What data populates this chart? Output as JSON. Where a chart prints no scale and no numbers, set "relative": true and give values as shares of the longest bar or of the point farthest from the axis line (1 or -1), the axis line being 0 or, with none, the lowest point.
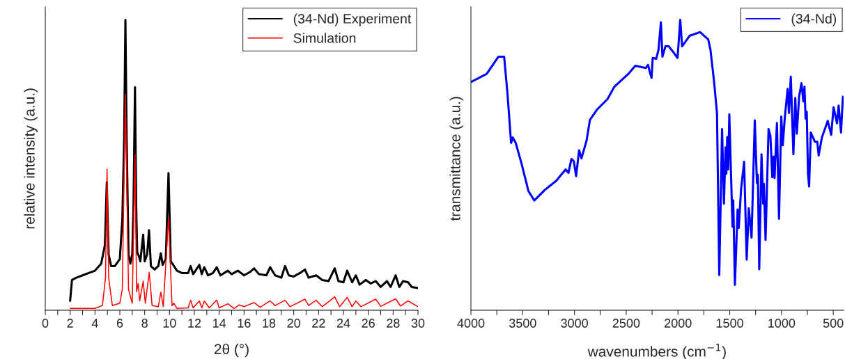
{
  "chart_data": [
    {
      "type": "line",
      "relative": true,
      "xlabel": "2θ (°)",
      "ylabel": "relative intensity (a.u.)",
      "legend": "top right",
      "tick_labels": "x",
      "grid": false,
      "xlim": [
        0,
        30
      ],
      "xticks": [
        0,
        {
          "value": 1,
          "label": null
        },
        2,
        {
          "value": 3,
          "label": null
        },
        4,
        {
          "value": 5,
          "label": null
        },
        6,
        {
          "value": 7,
          "label": null
        },
        8,
        {
          "value": 9,
          "label": null
        },
        10,
        {
          "value": 11,
          "label": null
        },
        12,
        {
          "value": 13,
          "label": null
        },
        14,
        {
          "value": 15,
          "label": null
        },
        16,
        {
          "value": 17,
          "label": null
        },
        18,
        {
          "value": 19,
          "label": null
        },
        20,
        {
          "value": 21,
          "label": null
        },
        22,
        {
          "value": 23,
          "label": null
        },
        24,
        {
          "value": 25,
          "label": null
        },
        26,
        {
          "value": 27,
          "label": null
        },
        28,
        {
          "value": 29,
          "label": null
        },
        30
      ],
      "series": [
        {
          "name": "(34-Nd) Experiment",
          "color": "#000000",
          "x": [
            2.0,
            2.15,
            2.5,
            3.0,
            3.5,
            4.0,
            4.5,
            4.8,
            4.95,
            5.1,
            5.3,
            5.6,
            6.0,
            6.2,
            6.35,
            6.45,
            6.55,
            6.7,
            6.85,
            7.0,
            7.1,
            7.22,
            7.32,
            7.4,
            7.55,
            7.65,
            7.88,
            8.0,
            8.2,
            8.35,
            8.5,
            8.8,
            9.1,
            9.3,
            9.45,
            9.7,
            9.92,
            10.1,
            10.3,
            10.6,
            11.0,
            11.5,
            11.7,
            11.9,
            12.4,
            12.6,
            12.8,
            13.1,
            13.5,
            13.8,
            14.1,
            14.7,
            15.0,
            15.5,
            16.0,
            16.5,
            16.8,
            17.2,
            17.8,
            18.1,
            18.5,
            19.0,
            19.3,
            19.6,
            20.0,
            20.5,
            20.9,
            21.2,
            21.8,
            22.3,
            22.8,
            23.3,
            23.6,
            24.0,
            24.3,
            24.7,
            25.0,
            25.3,
            25.8,
            26.2,
            26.6,
            27.0,
            27.5,
            27.8,
            28.2,
            28.5,
            28.8,
            29.2,
            29.5,
            30.0
          ],
          "values": [
            0.032,
            0.104,
            0.112,
            0.12,
            0.128,
            0.136,
            0.16,
            0.224,
            0.44,
            0.192,
            0.152,
            0.152,
            0.176,
            0.312,
            0.592,
            1.0,
            0.592,
            0.192,
            0.16,
            0.192,
            0.352,
            0.768,
            0.352,
            0.2,
            0.184,
            0.168,
            0.26,
            0.168,
            0.192,
            0.276,
            0.152,
            0.14,
            0.152,
            0.196,
            0.156,
            0.176,
            0.472,
            0.168,
            0.156,
            0.136,
            0.128,
            0.128,
            0.152,
            0.124,
            0.156,
            0.124,
            0.148,
            0.12,
            0.128,
            0.148,
            0.12,
            0.136,
            0.124,
            0.136,
            0.12,
            0.132,
            0.144,
            0.124,
            0.12,
            0.148,
            0.12,
            0.112,
            0.152,
            0.12,
            0.116,
            0.128,
            0.14,
            0.112,
            0.12,
            0.104,
            0.1,
            0.144,
            0.1,
            0.096,
            0.136,
            0.096,
            0.12,
            0.088,
            0.104,
            0.092,
            0.1,
            0.08,
            0.1,
            0.08,
            0.12,
            0.08,
            0.1,
            0.096,
            0.08,
            0.076
          ]
        },
        {
          "name": "Simulation",
          "color": "#ff0000",
          "x": [
            2.0,
            4.0,
            4.6,
            4.85,
            4.97,
            5.1,
            5.4,
            6.0,
            6.2,
            6.45,
            6.7,
            7.0,
            7.22,
            7.35,
            7.48,
            7.6,
            7.88,
            8.05,
            8.37,
            8.6,
            9.1,
            9.3,
            9.5,
            9.92,
            10.2,
            10.35,
            10.6,
            11.5,
            11.7,
            11.9,
            12.4,
            12.6,
            12.8,
            13.2,
            13.8,
            14.0,
            14.7,
            15.2,
            15.6,
            16.0,
            16.8,
            17.3,
            18.1,
            18.5,
            19.3,
            19.7,
            20.9,
            21.2,
            21.8,
            22.3,
            23.3,
            23.7,
            24.3,
            24.7,
            25.0,
            25.4,
            26.6,
            27.0,
            28.2,
            28.6,
            29.2,
            30.0
          ],
          "values": [
            0.006,
            0.006,
            0.016,
            0.112,
            0.486,
            0.112,
            0.016,
            0.024,
            0.072,
            0.744,
            0.072,
            0.024,
            0.536,
            0.064,
            0.092,
            0.032,
            0.1,
            0.024,
            0.13,
            0.016,
            0.012,
            0.062,
            0.012,
            0.32,
            0.016,
            0.024,
            0.006,
            0.008,
            0.034,
            0.008,
            0.032,
            0.008,
            0.032,
            0.008,
            0.035,
            0.008,
            0.022,
            0.006,
            0.018,
            0.012,
            0.026,
            0.01,
            0.032,
            0.016,
            0.034,
            0.012,
            0.038,
            0.016,
            0.034,
            0.012,
            0.046,
            0.012,
            0.044,
            0.012,
            0.032,
            0.012,
            0.038,
            0.013,
            0.039,
            0.014,
            0.032,
            0.012
          ]
        }
      ]
    },
    {
      "type": "line",
      "relative": true,
      "xlabel": "wavenumbers (cm$^{−1}$)",
      "ylabel": "transmittance (a.u.)",
      "legend": "top right",
      "tick_labels": "x",
      "grid": false,
      "xlim": [
        4000,
        400
      ],
      "xticks": [
        4000,
        {
          "value": 3750,
          "label": null
        },
        3500,
        {
          "value": 3250,
          "label": null
        },
        3000,
        {
          "value": 2750,
          "label": null
        },
        2500,
        {
          "value": 2250,
          "label": null
        },
        2000,
        {
          "value": 1750,
          "label": null
        },
        1500,
        {
          "value": 1250,
          "label": null
        },
        1000,
        {
          "value": 750,
          "label": null
        },
        500
      ],
      "series": [
        {
          "name": "(34-Nd)",
          "color": "#0000ff",
          "x": [
            4000,
            3847,
            3735,
            3679,
            3646,
            3612,
            3596,
            3567,
            3511,
            3444,
            3388,
            3287,
            3175,
            3085,
            3058,
            3029,
            3006,
            2984,
            2955,
            2932,
            2883,
            2850,
            2782,
            2681,
            2614,
            2479,
            2412,
            2311,
            2289,
            2273,
            2255,
            2244,
            2210,
            2188,
            2165,
            2150,
            2121,
            2090,
            2045,
            2004,
            1978,
            1960,
            1888,
            1787,
            1708,
            1686,
            1652,
            1623,
            1601,
            1574,
            1556,
            1540,
            1533,
            1524,
            1515,
            1504,
            1473,
            1466,
            1450,
            1424,
            1413,
            1390,
            1361,
            1336,
            1316,
            1289,
            1258,
            1237,
            1228,
            1215,
            1193,
            1177,
            1170,
            1154,
            1125,
            1107,
            1089,
            1076,
            1067,
            1044,
            1024,
            1002,
            988,
            968,
            941,
            928,
            910,
            885,
            867,
            852,
            830,
            807,
            789,
            778,
            767,
            756,
            744,
            733,
            717,
            677,
            654,
            641,
            609,
            553,
            520,
            497,
            464,
            448,
            425,
            407
          ],
          "values": [
            0.786,
            0.814,
            0.873,
            0.873,
            0.743,
            0.576,
            0.595,
            0.576,
            0.505,
            0.41,
            0.378,
            0.414,
            0.446,
            0.485,
            0.473,
            0.521,
            0.513,
            0.462,
            0.551,
            0.523,
            0.584,
            0.656,
            0.691,
            0.727,
            0.77,
            0.814,
            0.842,
            0.834,
            0.845,
            0.822,
            0.8,
            0.869,
            0.866,
            0.897,
            0.992,
            0.873,
            0.909,
            0.909,
            0.889,
            0.869,
            1.0,
            0.909,
            0.945,
            0.958,
            0.933,
            0.897,
            0.79,
            0.679,
            0.121,
            0.624,
            0.367,
            0.561,
            0.47,
            0.596,
            0.485,
            0.675,
            0.287,
            0.378,
            0.087,
            0.347,
            0.283,
            0.418,
            0.511,
            0.174,
            0.351,
            0.25,
            0.654,
            0.438,
            0.466,
            0.141,
            0.537,
            0.367,
            0.435,
            0.242,
            0.624,
            0.6,
            0.458,
            0.529,
            0.455,
            0.645,
            0.315,
            0.667,
            0.568,
            0.663,
            0.762,
            0.679,
            0.804,
            0.537,
            0.731,
            0.608,
            0.735,
            0.782,
            0.719,
            0.77,
            0.66,
            0.683,
            0.47,
            0.426,
            0.612,
            0.58,
            0.58,
            0.533,
            0.596,
            0.652,
            0.604,
            0.699,
            0.644,
            0.705,
            0.612,
            0.735
          ]
        }
      ]
    }
  ]
}
